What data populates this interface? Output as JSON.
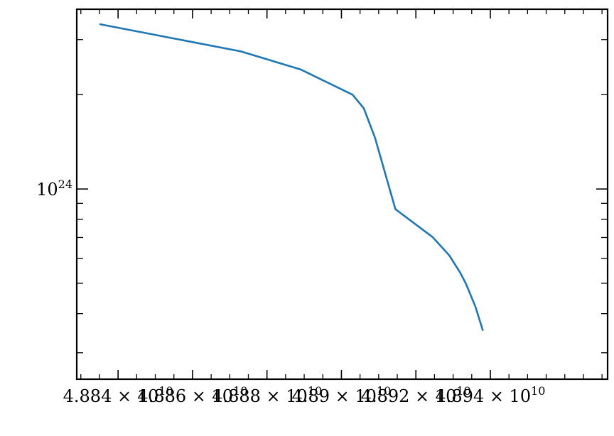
{
  "chart_data": {
    "type": "line",
    "title": "",
    "xlabel": "",
    "ylabel": "",
    "y_scale": "log",
    "grid": false,
    "x_ticks": [
      {
        "value": 48840000000.0,
        "mantissa": "4.884",
        "base": "10",
        "exp": "10"
      },
      {
        "value": 48860000000.0,
        "mantissa": "4.886",
        "base": "10",
        "exp": "10"
      },
      {
        "value": 48880000000.0,
        "mantissa": "4.888",
        "base": "10",
        "exp": "10"
      },
      {
        "value": 48900000000.0,
        "mantissa": "4.89",
        "base": "10",
        "exp": "10"
      },
      {
        "value": 48920000000.0,
        "mantissa": "4.892",
        "base": "10",
        "exp": "10"
      },
      {
        "value": 48940000000.0,
        "mantissa": "4.894",
        "base": "10",
        "exp": "10"
      }
    ],
    "y_ticks": [
      {
        "value": 1e+24,
        "base": "10",
        "exp": "24"
      }
    ],
    "xlim": [
      48828900000.0,
      48971500000.0
    ],
    "ylim": [
      2.47e+23,
      3.75e+24
    ],
    "series": [
      {
        "color": "#1f77b4",
        "x": [
          48835000000.0,
          48873000000.0,
          48889000000.0,
          48903000000.0,
          48906000000.0,
          48909000000.0,
          48914500000.0,
          48924500000.0,
          48929000000.0,
          48932000000.0,
          48933500000.0,
          48936000000.0,
          48938000000.0
        ],
        "y": [
          3.36e+24,
          2.75e+24,
          2.41e+24,
          2e+24,
          1.81e+24,
          1.46e+24,
          8.62e+23,
          7.02e+23,
          6.13e+23,
          5.38e+23,
          4.97e+23,
          4.21e+23,
          3.53e+23
        ]
      }
    ]
  }
}
